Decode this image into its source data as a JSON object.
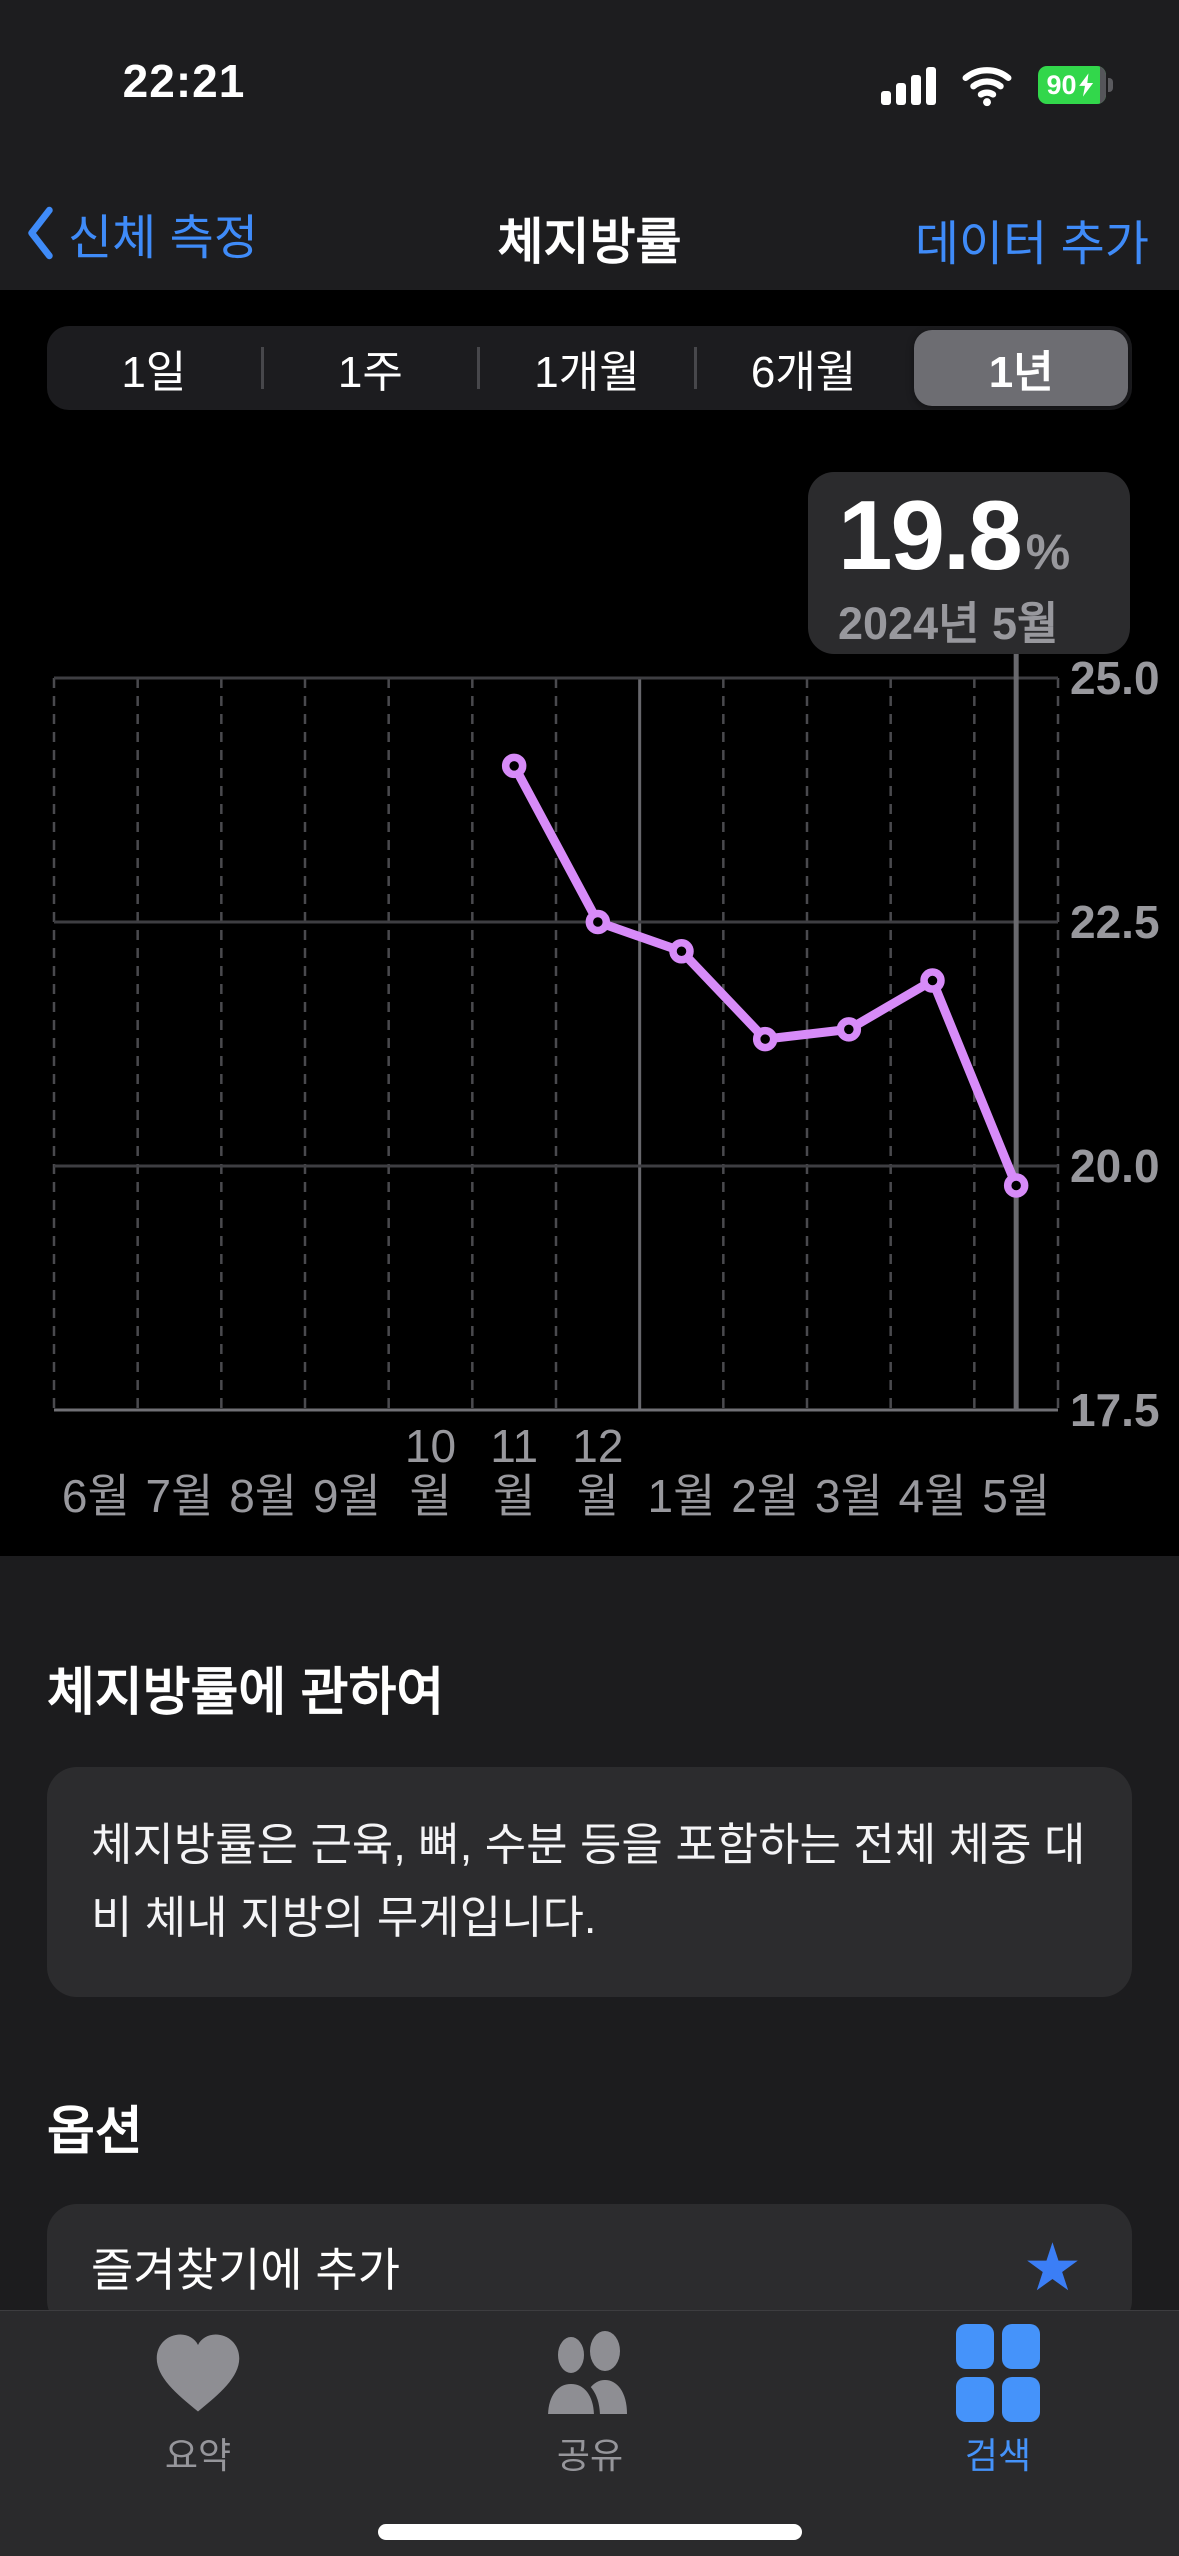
{
  "status_bar": {
    "time": "22:21",
    "battery_percent": "90",
    "charging": true
  },
  "nav": {
    "back_label": "신체 측정",
    "title": "체지방률",
    "action_label": "데이터 추가"
  },
  "range_selector": {
    "options": [
      "1일",
      "1주",
      "1개월",
      "6개월",
      "1년"
    ],
    "selected": "1년",
    "selected_index": 4
  },
  "callout": {
    "value": "19.8",
    "unit": "%",
    "period": "2024년 5월"
  },
  "chart_data": {
    "type": "line",
    "x": [
      "6월",
      "7월",
      "8월",
      "9월",
      "10월",
      "11월",
      "12월",
      "1월",
      "2월",
      "3월",
      "4월",
      "5월"
    ],
    "series": [
      {
        "name": "체지방률",
        "values": [
          null,
          null,
          null,
          null,
          null,
          24.1,
          22.5,
          22.2,
          21.3,
          21.4,
          21.9,
          19.8
        ]
      }
    ],
    "unit": "%",
    "ylim": [
      17.5,
      25.0
    ],
    "yticks": [
      {
        "label": "25.0",
        "value": 25.0
      },
      {
        "label": "22.5",
        "value": 22.5
      },
      {
        "label": "20.0",
        "value": 20.0
      },
      {
        "label": "17.5",
        "value": 17.5
      }
    ],
    "selected_point": {
      "index": 11,
      "x_label": "5월",
      "value": 19.8,
      "period": "2024년 5월"
    },
    "year_boundary_index": 7,
    "grid": true,
    "legend": false,
    "line_color": "#d78bf8",
    "point_fill": "#000000",
    "selection_line_color": "#68686d",
    "gridline_color": "#3e3e42",
    "dashed_line_color": "#4a4a4e",
    "axis_line_color": "#707075",
    "tick_label_color": "#98989d"
  },
  "about": {
    "heading": "체지방률에 관하여",
    "body": "체지방률은 근육, 뼈, 수분 등을 포함하는 전체 체중 대비 체내 지방의 무게입니다."
  },
  "options_section": {
    "heading": "옵션",
    "favorite_label": "즐겨찾기에 추가"
  },
  "tab_bar": {
    "tabs": [
      {
        "label": "요약",
        "icon": "heart",
        "active": false
      },
      {
        "label": "공유",
        "icon": "people",
        "active": false
      },
      {
        "label": "검색",
        "icon": "grid",
        "active": true
      }
    ]
  },
  "icons": {
    "star": "★"
  },
  "colors": {
    "accent_blue": "#3f8bf8",
    "tab_active_blue": "#4593fa",
    "star_blue": "#3b7ef6",
    "battery_green": "#32d74b"
  }
}
